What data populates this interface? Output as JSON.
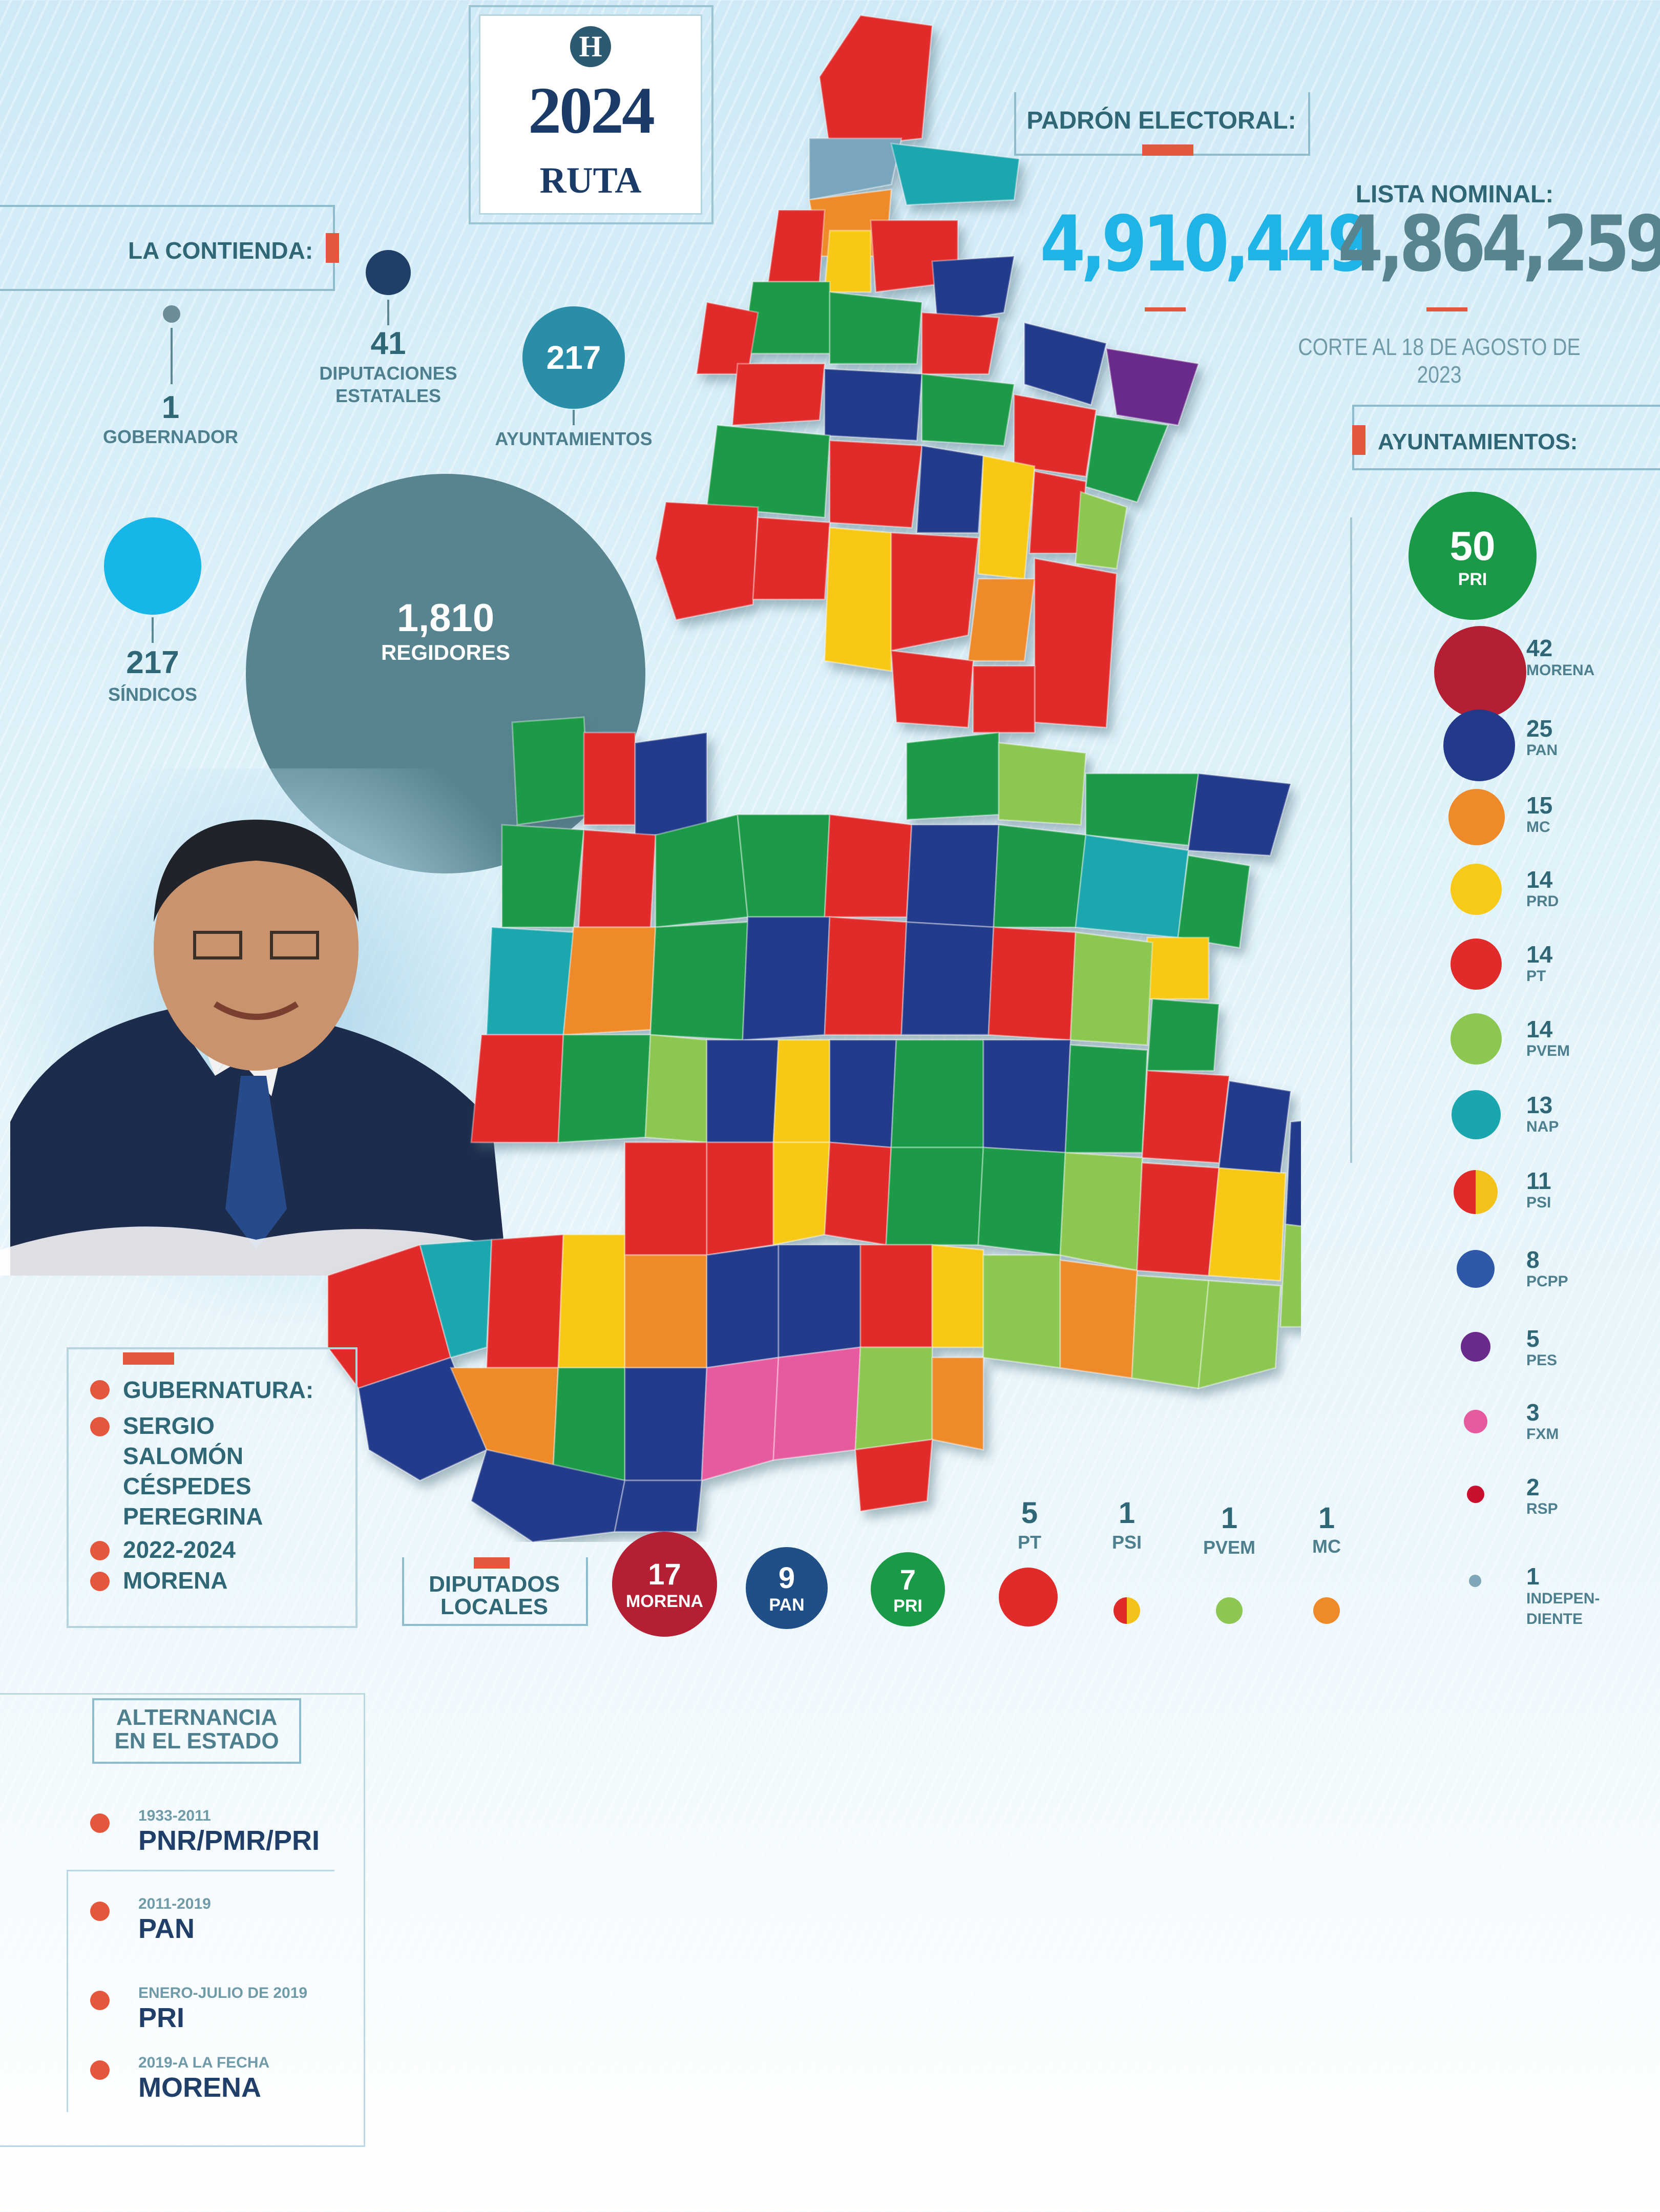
{
  "logo": {
    "letter": "H",
    "year": "2024",
    "brand": "RUTA"
  },
  "padron": {
    "label": "PADRÓN ELECTORAL:",
    "value": "4,910,449"
  },
  "lista": {
    "label": "LISTA NOMINAL:",
    "value": "4,864,259",
    "corte": "CORTE AL 18 DE AGOSTO DE 2023"
  },
  "contienda": {
    "label": "LA CONTIENDA:",
    "gobernador": {
      "n": "1",
      "label": "GOBERNADOR"
    },
    "diputaciones": {
      "n": "41",
      "label1": "DIPUTACIONES",
      "label2": "ESTATALES"
    },
    "ayuntamientos": {
      "n": "217",
      "label": "AYUNTAMIENTOS"
    },
    "sindicos": {
      "n": "217",
      "label": "SÍNDICOS"
    },
    "regidores": {
      "n": "1,810",
      "label": "REGIDORES"
    }
  },
  "ayuntamientos_panel": {
    "label": "AYUNTAMIENTOS:",
    "top": {
      "n": "50",
      "party": "PRI",
      "color": "#1a9a47"
    },
    "items": [
      {
        "n": "42",
        "party": "MORENA",
        "color": "#b41f34"
      },
      {
        "n": "25",
        "party": "PAN",
        "color": "#233a8a"
      },
      {
        "n": "15",
        "party": "MC",
        "color": "#ef8a2a"
      },
      {
        "n": "14",
        "party": "PRD",
        "color": "#f7c919"
      },
      {
        "n": "14",
        "party": "PT",
        "color": "#e12b2b"
      },
      {
        "n": "14",
        "party": "PVEM",
        "color": "#8cc751"
      },
      {
        "n": "13",
        "party": "NAP",
        "color": "#1aa6ae"
      },
      {
        "n": "11",
        "party": "PSI",
        "color": "#f2c21b"
      },
      {
        "n": "8",
        "party": "PCPP",
        "color": "#2f58a8"
      },
      {
        "n": "5",
        "party": "PES",
        "color": "#6a2a8c"
      },
      {
        "n": "3",
        "party": "FXM",
        "color": "#e65a9e"
      },
      {
        "n": "2",
        "party": "RSP",
        "color": "#c8102e"
      },
      {
        "n": "1",
        "party": "INDEPEN-",
        "party2": "DIENTE",
        "color": "#7fa6b8"
      }
    ]
  },
  "gubernatura": {
    "label": "GUBERNATURA:",
    "name1": "SERGIO",
    "name2": "SALOMÓN",
    "name3": "CÉSPEDES",
    "name4": "PEREGRINA",
    "period": "2022-2024",
    "party": "MORENA"
  },
  "diputados": {
    "label1": "DIPUTADOS",
    "label2": "LOCALES",
    "items": [
      {
        "n": "17",
        "party": "MORENA",
        "color": "#b41f34"
      },
      {
        "n": "9",
        "party": "PAN",
        "color": "#1f4f86"
      },
      {
        "n": "7",
        "party": "PRI",
        "color": "#1a9a47"
      },
      {
        "n": "5",
        "party": "PT",
        "color": "#e12b2b"
      },
      {
        "n": "1",
        "party": "PSI",
        "color": "#f2c21b"
      },
      {
        "n": "1",
        "party": "PVEM",
        "color": "#8cc751"
      },
      {
        "n": "1",
        "party": "MC",
        "color": "#ef8a2a"
      }
    ]
  },
  "alternancia": {
    "label1": "ALTERNANCIA",
    "label2": "EN EL ESTADO",
    "items": [
      {
        "period": "1933-2011",
        "party": "PNR/PMR/PRI"
      },
      {
        "period": "2011-2019",
        "party": "PAN"
      },
      {
        "period": "ENERO-JULIO DE 2019",
        "party": "PRI"
      },
      {
        "period": "2019-A LA FECHA",
        "party": "MORENA"
      }
    ]
  },
  "colors": {
    "accent": "#e4573d",
    "teal": "#4e7f8e",
    "cyan": "#1fb3e6",
    "slate": "#57848f"
  }
}
